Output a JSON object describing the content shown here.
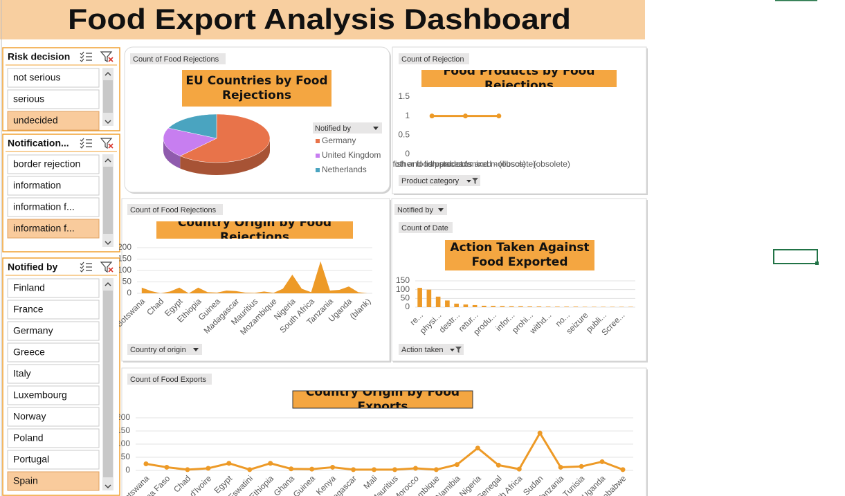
{
  "title": "Food Export Analysis Dashboard",
  "slicers": [
    {
      "title": "Risk decision",
      "items": [
        "not serious",
        "serious",
        "undecided"
      ],
      "selected": [
        2
      ]
    },
    {
      "title": "Notification...",
      "items": [
        "border rejection",
        "information",
        "information f...",
        "information f..."
      ],
      "selected": [
        3
      ]
    },
    {
      "title": "Notified by",
      "items": [
        "Finland",
        "France",
        "Germany",
        "Greece",
        "Italy",
        "Luxembourg",
        "Norway",
        "Poland",
        "Portugal",
        "Spain"
      ],
      "selected": [
        9
      ]
    }
  ],
  "chart_data": [
    {
      "type": "pie",
      "title": "EU Countries by Food Rejections",
      "field_buttons": [
        "Count of Food Rejections"
      ],
      "legend_title": "Notified by",
      "categories": [
        "Germany",
        "United Kingdom",
        "Netherlands"
      ],
      "values": [
        62,
        20,
        18
      ],
      "colors": [
        "#e8734a",
        "#c77ef0",
        "#4aa4c0"
      ]
    },
    {
      "type": "line",
      "title": "Food Products by Food Rejections",
      "field_buttons": [
        "Count of Rejection",
        "Product category"
      ],
      "categories": [
        "fish and fish products",
        "other food product / mixed - (obsolete)",
        "crustaceans and molluscs) - (obsolete)"
      ],
      "values": [
        1,
        1,
        1
      ],
      "color": "#ed9a27",
      "ylim": [
        0,
        1.5
      ],
      "yticks": [
        0,
        0.5,
        1,
        1.5
      ],
      "grid": false
    },
    {
      "type": "area",
      "title": "Country Origin by Food Rejections",
      "field_buttons": [
        "Count of Food Rejections",
        "Country of origin"
      ],
      "categories": [
        "Botswana",
        null,
        "Chad",
        null,
        "Egypt",
        null,
        "Ethiopia",
        null,
        "Guinea",
        null,
        "Madagascar",
        null,
        "Mauritius",
        null,
        "Mozambique",
        null,
        "Nigeria",
        null,
        "South Africa",
        null,
        "Tanzania",
        null,
        "Uganda",
        null,
        "(blank)"
      ],
      "values": [
        25,
        10,
        0,
        8,
        25,
        0,
        25,
        5,
        3,
        12,
        10,
        3,
        2,
        8,
        2,
        20,
        82,
        20,
        5,
        140,
        12,
        15,
        30,
        5,
        0
      ],
      "color": "#ed9a27",
      "ylim": [
        0,
        200
      ],
      "yticks": [
        0,
        50,
        100,
        150,
        200
      ],
      "grid": true
    },
    {
      "type": "bar",
      "title": "Action Taken Against Food Exported",
      "field_buttons": [
        "Notified by",
        "Count of Date",
        "Action taken"
      ],
      "categories": [
        "re...",
        null,
        "physi...",
        null,
        "destr...",
        null,
        "retur...",
        null,
        "produ...",
        null,
        "infor...",
        null,
        "prohi...",
        null,
        "withd...",
        null,
        "no...",
        null,
        "seizure",
        null,
        "publi...",
        null,
        "Scree...",
        null
      ],
      "values": [
        110,
        100,
        60,
        38,
        20,
        15,
        12,
        8,
        7,
        6,
        5,
        5,
        4,
        4,
        3,
        3,
        3,
        3,
        2,
        2,
        2,
        2,
        2,
        2
      ],
      "color": "#ed9a27",
      "ylim": [
        0,
        150
      ],
      "yticks": [
        0,
        50,
        100,
        150
      ],
      "grid": true
    },
    {
      "type": "line",
      "title": "Country Origin by Food Exports",
      "field_buttons": [
        "Count of Food Exports"
      ],
      "categories": [
        "Botswana",
        "Burkina Faso",
        "Chad",
        "Côte d'Ivoire",
        "Egypt",
        "Eswatini",
        "Ethiopia",
        "Ghana",
        "Guinea",
        "Kenya",
        "Madagascar",
        "Mali",
        "Mauritius",
        "Morocco",
        "Mozambique",
        "Namibia",
        "Nigeria",
        "Senegal",
        "South Africa",
        "Sudan",
        "Tanzania",
        "Tunisia",
        "Uganda",
        "Zimbabwe"
      ],
      "values": [
        25,
        12,
        3,
        8,
        27,
        3,
        27,
        6,
        5,
        12,
        3,
        3,
        3,
        8,
        3,
        22,
        85,
        20,
        5,
        142,
        12,
        15,
        33,
        3
      ],
      "color": "#ed9a27",
      "ylim": [
        0,
        200
      ],
      "yticks": [
        0,
        50,
        100,
        150,
        200
      ],
      "grid": true
    }
  ]
}
